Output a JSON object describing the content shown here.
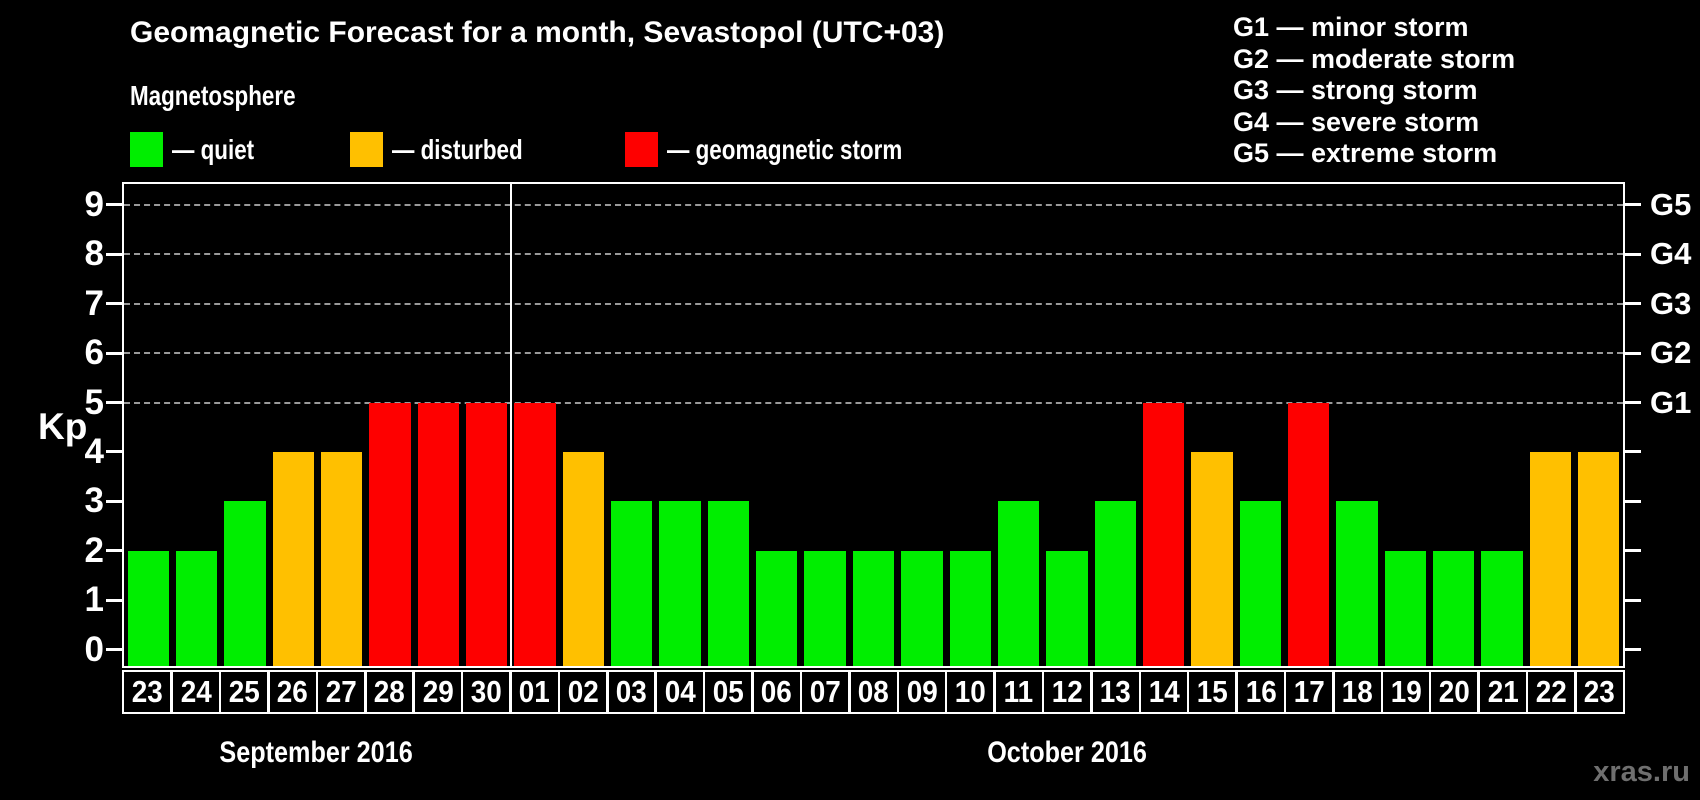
{
  "title": "Geomagnetic Forecast for a month, Sevastopol (UTC+03)",
  "legend": {
    "title": "Magnetosphere",
    "items": [
      {
        "key": "quiet",
        "label": "— quiet",
        "color": "#00ee00"
      },
      {
        "key": "disturbed",
        "label": "— disturbed",
        "color": "#ffc000"
      },
      {
        "key": "storm",
        "label": "— geomagnetic storm",
        "color": "#fe0000"
      }
    ]
  },
  "g_legend": [
    "G1 — minor storm",
    "G2 — moderate storm",
    "G3 — strong storm",
    "G4 — severe storm",
    "G5 — extreme storm"
  ],
  "watermark": "xras.ru",
  "chart_data": {
    "type": "bar",
    "title": "Geomagnetic Forecast for a month, Sevastopol (UTC+03)",
    "ylabel": "Kp",
    "ylim": [
      0,
      9
    ],
    "yticks": [
      0,
      1,
      2,
      3,
      4,
      5,
      6,
      7,
      8,
      9
    ],
    "gridline_levels": [
      5,
      6,
      7,
      8,
      9
    ],
    "right_axis_labels": [
      {
        "kp": 5,
        "label": "G1"
      },
      {
        "kp": 6,
        "label": "G2"
      },
      {
        "kp": 7,
        "label": "G3"
      },
      {
        "kp": 8,
        "label": "G4"
      },
      {
        "kp": 9,
        "label": "G5"
      }
    ],
    "colors": {
      "quiet": "#00ee00",
      "disturbed": "#ffc000",
      "storm": "#fe0000"
    },
    "legend_position": "top-left",
    "groups": [
      {
        "month": "September 2016",
        "bars": [
          {
            "day": "23",
            "kp": 2,
            "status": "quiet"
          },
          {
            "day": "24",
            "kp": 2,
            "status": "quiet"
          },
          {
            "day": "25",
            "kp": 3,
            "status": "quiet"
          },
          {
            "day": "26",
            "kp": 4,
            "status": "disturbed"
          },
          {
            "day": "27",
            "kp": 4,
            "status": "disturbed"
          },
          {
            "day": "28",
            "kp": 5,
            "status": "storm"
          },
          {
            "day": "29",
            "kp": 5,
            "status": "storm"
          },
          {
            "day": "30",
            "kp": 5,
            "status": "storm"
          }
        ]
      },
      {
        "month": "October 2016",
        "bars": [
          {
            "day": "01",
            "kp": 5,
            "status": "storm"
          },
          {
            "day": "02",
            "kp": 4,
            "status": "disturbed"
          },
          {
            "day": "03",
            "kp": 3,
            "status": "quiet"
          },
          {
            "day": "04",
            "kp": 3,
            "status": "quiet"
          },
          {
            "day": "05",
            "kp": 3,
            "status": "quiet"
          },
          {
            "day": "06",
            "kp": 2,
            "status": "quiet"
          },
          {
            "day": "07",
            "kp": 2,
            "status": "quiet"
          },
          {
            "day": "08",
            "kp": 2,
            "status": "quiet"
          },
          {
            "day": "09",
            "kp": 2,
            "status": "quiet"
          },
          {
            "day": "10",
            "kp": 2,
            "status": "quiet"
          },
          {
            "day": "11",
            "kp": 3,
            "status": "quiet"
          },
          {
            "day": "12",
            "kp": 2,
            "status": "quiet"
          },
          {
            "day": "13",
            "kp": 3,
            "status": "quiet"
          },
          {
            "day": "14",
            "kp": 5,
            "status": "storm"
          },
          {
            "day": "15",
            "kp": 4,
            "status": "disturbed"
          },
          {
            "day": "16",
            "kp": 3,
            "status": "quiet"
          },
          {
            "day": "17",
            "kp": 5,
            "status": "storm"
          },
          {
            "day": "18",
            "kp": 3,
            "status": "quiet"
          },
          {
            "day": "19",
            "kp": 2,
            "status": "quiet"
          },
          {
            "day": "20",
            "kp": 2,
            "status": "quiet"
          },
          {
            "day": "21",
            "kp": 2,
            "status": "quiet"
          },
          {
            "day": "22",
            "kp": 4,
            "status": "disturbed"
          },
          {
            "day": "23",
            "kp": 4,
            "status": "disturbed"
          }
        ]
      }
    ]
  }
}
